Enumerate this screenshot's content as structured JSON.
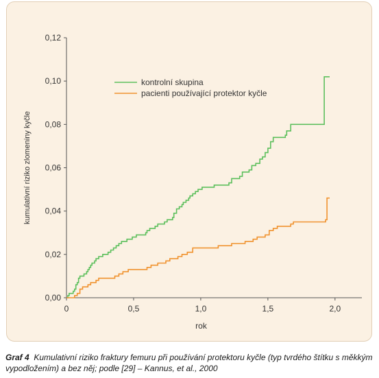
{
  "chart_data": {
    "type": "line",
    "step": true,
    "xlabel": "rok",
    "ylabel": "kumulativní riziko zlomeniny kyčle",
    "xlim": [
      0,
      2.2
    ],
    "ylim": [
      0,
      0.12
    ],
    "x_ticks": [
      0,
      0.5,
      1.0,
      1.5,
      2.0
    ],
    "x_tick_labels": [
      "0",
      "0,5",
      "1,0",
      "1,5",
      "2,0"
    ],
    "y_ticks": [
      0,
      0.02,
      0.04,
      0.06,
      0.08,
      0.1,
      0.12
    ],
    "y_tick_labels": [
      "0,00",
      "0,02",
      "0,04",
      "0,06",
      "0,08",
      "0,10",
      "0,12"
    ],
    "grid": false,
    "legend_position": "top-center",
    "series": [
      {
        "name": "kontrolní skupina",
        "color": "#5cbf5c",
        "points": [
          [
            0,
            0
          ],
          [
            0.01,
            0.001
          ],
          [
            0.02,
            0.002
          ],
          [
            0.04,
            0.002
          ],
          [
            0.05,
            0.003
          ],
          [
            0.06,
            0.004
          ],
          [
            0.07,
            0.006
          ],
          [
            0.08,
            0.007
          ],
          [
            0.09,
            0.009
          ],
          [
            0.1,
            0.01
          ],
          [
            0.12,
            0.01
          ],
          [
            0.13,
            0.011
          ],
          [
            0.15,
            0.012
          ],
          [
            0.16,
            0.013
          ],
          [
            0.17,
            0.014
          ],
          [
            0.18,
            0.015
          ],
          [
            0.19,
            0.016
          ],
          [
            0.21,
            0.017
          ],
          [
            0.22,
            0.018
          ],
          [
            0.24,
            0.019
          ],
          [
            0.26,
            0.019
          ],
          [
            0.27,
            0.02
          ],
          [
            0.29,
            0.02
          ],
          [
            0.31,
            0.021
          ],
          [
            0.33,
            0.022
          ],
          [
            0.35,
            0.023
          ],
          [
            0.37,
            0.024
          ],
          [
            0.39,
            0.025
          ],
          [
            0.41,
            0.026
          ],
          [
            0.43,
            0.026
          ],
          [
            0.45,
            0.027
          ],
          [
            0.47,
            0.027
          ],
          [
            0.49,
            0.028
          ],
          [
            0.52,
            0.029
          ],
          [
            0.56,
            0.029
          ],
          [
            0.59,
            0.03
          ],
          [
            0.6,
            0.031
          ],
          [
            0.62,
            0.032
          ],
          [
            0.66,
            0.033
          ],
          [
            0.68,
            0.034
          ],
          [
            0.73,
            0.035
          ],
          [
            0.75,
            0.036
          ],
          [
            0.79,
            0.037
          ],
          [
            0.8,
            0.039
          ],
          [
            0.82,
            0.041
          ],
          [
            0.84,
            0.042
          ],
          [
            0.86,
            0.043
          ],
          [
            0.87,
            0.044
          ],
          [
            0.89,
            0.045
          ],
          [
            0.91,
            0.046
          ],
          [
            0.92,
            0.047
          ],
          [
            0.94,
            0.048
          ],
          [
            0.96,
            0.049
          ],
          [
            0.98,
            0.05
          ],
          [
            1.01,
            0.051
          ],
          [
            1.1,
            0.052
          ],
          [
            1.21,
            0.053
          ],
          [
            1.23,
            0.055
          ],
          [
            1.29,
            0.056
          ],
          [
            1.31,
            0.058
          ],
          [
            1.36,
            0.059
          ],
          [
            1.38,
            0.061
          ],
          [
            1.41,
            0.062
          ],
          [
            1.44,
            0.064
          ],
          [
            1.46,
            0.065
          ],
          [
            1.48,
            0.067
          ],
          [
            1.5,
            0.069
          ],
          [
            1.52,
            0.072
          ],
          [
            1.54,
            0.074
          ],
          [
            1.63,
            0.075
          ],
          [
            1.64,
            0.077
          ],
          [
            1.67,
            0.08
          ],
          [
            1.91,
            0.08
          ],
          [
            1.92,
            0.102
          ],
          [
            1.96,
            0.102
          ]
        ]
      },
      {
        "name": "pacienti používající protektor kyčle",
        "color": "#f0922e",
        "points": [
          [
            0,
            0
          ],
          [
            0.06,
            0.001
          ],
          [
            0.08,
            0.002
          ],
          [
            0.1,
            0.004
          ],
          [
            0.12,
            0.005
          ],
          [
            0.16,
            0.006
          ],
          [
            0.18,
            0.007
          ],
          [
            0.22,
            0.008
          ],
          [
            0.24,
            0.009
          ],
          [
            0.3,
            0.009
          ],
          [
            0.36,
            0.01
          ],
          [
            0.39,
            0.011
          ],
          [
            0.42,
            0.012
          ],
          [
            0.46,
            0.013
          ],
          [
            0.56,
            0.013
          ],
          [
            0.6,
            0.014
          ],
          [
            0.63,
            0.015
          ],
          [
            0.68,
            0.016
          ],
          [
            0.74,
            0.017
          ],
          [
            0.77,
            0.018
          ],
          [
            0.83,
            0.019
          ],
          [
            0.86,
            0.02
          ],
          [
            0.9,
            0.021
          ],
          [
            0.94,
            0.023
          ],
          [
            1.09,
            0.023
          ],
          [
            1.13,
            0.024
          ],
          [
            1.23,
            0.025
          ],
          [
            1.33,
            0.026
          ],
          [
            1.39,
            0.027
          ],
          [
            1.42,
            0.028
          ],
          [
            1.48,
            0.029
          ],
          [
            1.51,
            0.031
          ],
          [
            1.54,
            0.032
          ],
          [
            1.57,
            0.033
          ],
          [
            1.67,
            0.034
          ],
          [
            1.69,
            0.035
          ],
          [
            1.93,
            0.036
          ],
          [
            1.94,
            0.046
          ],
          [
            1.96,
            0.046
          ]
        ]
      }
    ]
  },
  "caption": {
    "label": "Graf 4",
    "text": "Kumulativní riziko fraktury femuru při používání protektoru kyčle (typ tvrdého štítku s měkkým vypodložením) a bez něj; podle [29] – Kannus, et al., 2000"
  }
}
